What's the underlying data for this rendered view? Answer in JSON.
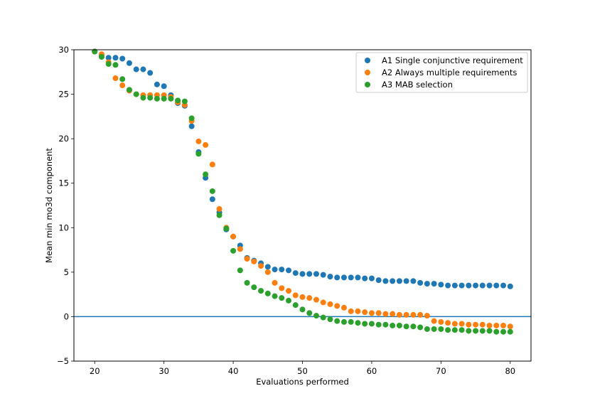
{
  "chart_data": {
    "type": "scatter",
    "title": "",
    "xlabel": "Evaluations performed",
    "ylabel": "Mean min mo3d component",
    "xlim": [
      17,
      83
    ],
    "ylim": [
      -5,
      30
    ],
    "xticks": [
      20,
      30,
      40,
      50,
      60,
      70,
      80
    ],
    "yticks": [
      -5,
      0,
      5,
      10,
      15,
      20,
      25,
      30
    ],
    "xtick_labels": [
      "20",
      "30",
      "40",
      "50",
      "60",
      "70",
      "80"
    ],
    "ytick_labels": [
      "−5",
      "0",
      "5",
      "10",
      "15",
      "20",
      "25",
      "30"
    ],
    "grid": false,
    "legend_position": "top-right",
    "reference_line": {
      "y": 0,
      "color": "#1f77b4"
    },
    "series": [
      {
        "name": "A1 Single conjunctive requirement",
        "color": "#1f77b4",
        "x": [
          20,
          21,
          22,
          23,
          24,
          25,
          26,
          27,
          28,
          29,
          30,
          31,
          32,
          33,
          34,
          35,
          36,
          37,
          38,
          39,
          40,
          41,
          42,
          43,
          44,
          45,
          46,
          47,
          48,
          49,
          50,
          51,
          52,
          53,
          54,
          55,
          56,
          57,
          58,
          59,
          60,
          61,
          62,
          63,
          64,
          65,
          66,
          67,
          68,
          69,
          70,
          71,
          72,
          73,
          74,
          75,
          76,
          77,
          78,
          79,
          80
        ],
        "y": [
          29.8,
          29.4,
          29.1,
          29.1,
          29.0,
          28.5,
          27.8,
          27.8,
          27.4,
          26.1,
          25.9,
          24.9,
          24.0,
          23.7,
          21.4,
          18.5,
          15.6,
          13.2,
          11.7,
          9.8,
          9.0,
          8.0,
          6.6,
          6.3,
          6.0,
          5.6,
          5.3,
          5.3,
          5.2,
          4.9,
          4.8,
          4.8,
          4.8,
          4.7,
          4.5,
          4.4,
          4.4,
          4.4,
          4.4,
          4.3,
          4.3,
          4.1,
          4.0,
          4.0,
          4.0,
          4.0,
          4.0,
          3.8,
          3.7,
          3.7,
          3.6,
          3.5,
          3.5,
          3.5,
          3.5,
          3.5,
          3.5,
          3.5,
          3.5,
          3.5,
          3.4
        ]
      },
      {
        "name": "A2 Always multiple requirements",
        "color": "#ff7f0e",
        "x": [
          20,
          21,
          22,
          23,
          24,
          25,
          26,
          27,
          28,
          29,
          30,
          31,
          32,
          33,
          34,
          35,
          36,
          37,
          38,
          39,
          40,
          41,
          42,
          43,
          44,
          45,
          46,
          47,
          48,
          49,
          50,
          51,
          52,
          53,
          54,
          55,
          56,
          57,
          58,
          59,
          60,
          61,
          62,
          63,
          64,
          65,
          66,
          67,
          68,
          69,
          70,
          71,
          72,
          73,
          74,
          75,
          76,
          77,
          78,
          79,
          80
        ],
        "y": [
          29.8,
          29.5,
          28.6,
          26.8,
          26.0,
          25.4,
          25.0,
          24.9,
          24.9,
          24.9,
          24.9,
          24.7,
          24.1,
          23.8,
          22.0,
          19.7,
          19.3,
          17.1,
          12.1,
          10.0,
          9.0,
          7.6,
          6.5,
          6.2,
          5.7,
          5.0,
          3.8,
          3.2,
          2.9,
          2.4,
          2.2,
          2.1,
          1.9,
          1.6,
          1.4,
          1.2,
          1.0,
          0.6,
          0.6,
          0.5,
          0.4,
          0.4,
          0.3,
          0.3,
          0.2,
          0.2,
          0.2,
          0.2,
          0.1,
          -0.5,
          -0.6,
          -0.7,
          -0.8,
          -0.8,
          -0.9,
          -0.9,
          -0.9,
          -1.0,
          -1.0,
          -1.0,
          -1.1
        ]
      },
      {
        "name": "A3 MAB selection",
        "color": "#2ca02c",
        "x": [
          20,
          21,
          22,
          23,
          24,
          25,
          26,
          27,
          28,
          29,
          30,
          31,
          32,
          33,
          34,
          35,
          36,
          37,
          38,
          39,
          40,
          41,
          42,
          43,
          44,
          45,
          46,
          47,
          48,
          49,
          50,
          51,
          52,
          53,
          54,
          55,
          56,
          57,
          58,
          59,
          60,
          61,
          62,
          63,
          64,
          65,
          66,
          67,
          68,
          69,
          70,
          71,
          72,
          73,
          74,
          75,
          76,
          77,
          78,
          79,
          80
        ],
        "y": [
          29.8,
          29.2,
          28.4,
          28.3,
          26.7,
          25.5,
          25.0,
          24.6,
          24.6,
          24.5,
          24.5,
          24.5,
          24.3,
          24.2,
          22.3,
          18.3,
          16.0,
          14.1,
          11.4,
          9.9,
          7.4,
          5.2,
          3.8,
          3.3,
          2.9,
          2.6,
          2.3,
          2.1,
          1.8,
          1.3,
          0.8,
          0.4,
          0.1,
          -0.1,
          -0.3,
          -0.5,
          -0.6,
          -0.6,
          -0.7,
          -0.8,
          -0.8,
          -0.9,
          -0.9,
          -1.0,
          -1.0,
          -1.1,
          -1.1,
          -1.2,
          -1.4,
          -1.4,
          -1.4,
          -1.5,
          -1.5,
          -1.5,
          -1.6,
          -1.6,
          -1.6,
          -1.6,
          -1.7,
          -1.7,
          -1.7
        ]
      }
    ]
  }
}
